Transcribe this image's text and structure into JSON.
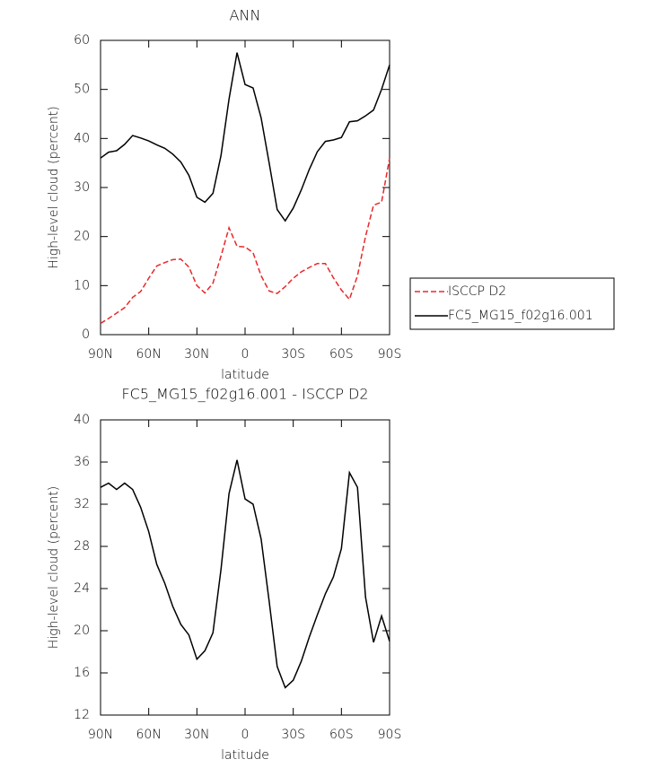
{
  "chart_data": [
    {
      "type": "line",
      "title": "ANN",
      "xlabel": "latitude",
      "ylabel": "High-level cloud (percent)",
      "x": [
        90,
        85,
        80,
        75,
        70,
        65,
        60,
        55,
        50,
        45,
        40,
        35,
        30,
        25,
        20,
        15,
        10,
        5,
        0,
        -5,
        -10,
        -15,
        -20,
        -25,
        -30,
        -35,
        -40,
        -45,
        -50,
        -55,
        -60,
        -65,
        -70,
        -75,
        -80,
        -85,
        -90
      ],
      "series": [
        {
          "name": "ISCCP D2",
          "color": "#e8282a",
          "line_style": "dashed",
          "values": [
            2.3,
            3.3,
            4.4,
            5.5,
            7.6,
            8.8,
            11.5,
            14,
            14.7,
            15.3,
            15.4,
            13.8,
            10,
            8.5,
            10.5,
            16,
            21.8,
            18,
            17.9,
            16.7,
            12,
            8.9,
            8.4,
            9.8,
            11.5,
            12.8,
            13.7,
            14.5,
            14.5,
            11.6,
            9.1,
            7.2,
            12,
            20,
            26.4,
            27,
            36
          ]
        },
        {
          "name": "FC5_MG15_f02g16.001",
          "color": "#000000",
          "line_style": "solid",
          "values": [
            36,
            37.2,
            37.5,
            38.8,
            40.6,
            40.1,
            39.5,
            38.7,
            38,
            36.8,
            35.2,
            32.5,
            28,
            27,
            28.8,
            36.5,
            48,
            57.5,
            51,
            50.3,
            44.2,
            35,
            25.5,
            23.2,
            25.8,
            29.5,
            33.7,
            37.3,
            39.4,
            39.7,
            40.2,
            43.4,
            43.6,
            44.6,
            45.8,
            50,
            55
          ]
        }
      ],
      "xlim": [
        90,
        -90
      ],
      "xticks": [
        {
          "value": 90,
          "label": "90N"
        },
        {
          "value": 60,
          "label": "60N"
        },
        {
          "value": 30,
          "label": "30N"
        },
        0,
        {
          "value": -30,
          "label": "30S"
        },
        {
          "value": -60,
          "label": "60S"
        },
        {
          "value": -90,
          "label": "90S"
        }
      ],
      "ylim": [
        0,
        60
      ],
      "yticks": [
        0,
        10,
        20,
        30,
        40,
        50,
        60
      ],
      "grid": false,
      "legend": "right"
    },
    {
      "type": "line",
      "title": "FC5_MG15_f02g16.001 - ISCCP D2",
      "xlabel": "latitude",
      "ylabel": "High-level cloud (percent)",
      "x": [
        90,
        85,
        80,
        75,
        70,
        65,
        60,
        55,
        50,
        45,
        40,
        35,
        30,
        25,
        20,
        15,
        10,
        5,
        0,
        -5,
        -10,
        -15,
        -20,
        -25,
        -30,
        -35,
        -40,
        -45,
        -50,
        -55,
        -60,
        -65,
        -70,
        -75,
        -80,
        -85,
        -90
      ],
      "series": [
        {
          "color": "#000000",
          "line_style": "solid",
          "values": [
            33.6,
            34,
            33.4,
            34,
            33.4,
            31.7,
            29.4,
            26.3,
            24.5,
            22.3,
            20.6,
            19.6,
            17.3,
            18.1,
            19.8,
            25.8,
            33,
            36.2,
            32.5,
            32,
            28.7,
            22.8,
            16.6,
            14.6,
            15.3,
            17.1,
            19.4,
            21.5,
            23.5,
            25.1,
            27.8,
            35,
            33.6,
            23.2,
            18.9,
            21.4,
            19
          ]
        }
      ],
      "xlim": [
        90,
        -90
      ],
      "xticks": [
        {
          "value": 90,
          "label": "90N"
        },
        {
          "value": 60,
          "label": "60N"
        },
        {
          "value": 30,
          "label": "30N"
        },
        0,
        {
          "value": -30,
          "label": "30S"
        },
        {
          "value": -60,
          "label": "60S"
        },
        {
          "value": -90,
          "label": "90S"
        }
      ],
      "ylim": [
        12,
        40
      ],
      "yticks": [
        12,
        16,
        20,
        24,
        28,
        32,
        36,
        40
      ],
      "grid": false
    }
  ]
}
